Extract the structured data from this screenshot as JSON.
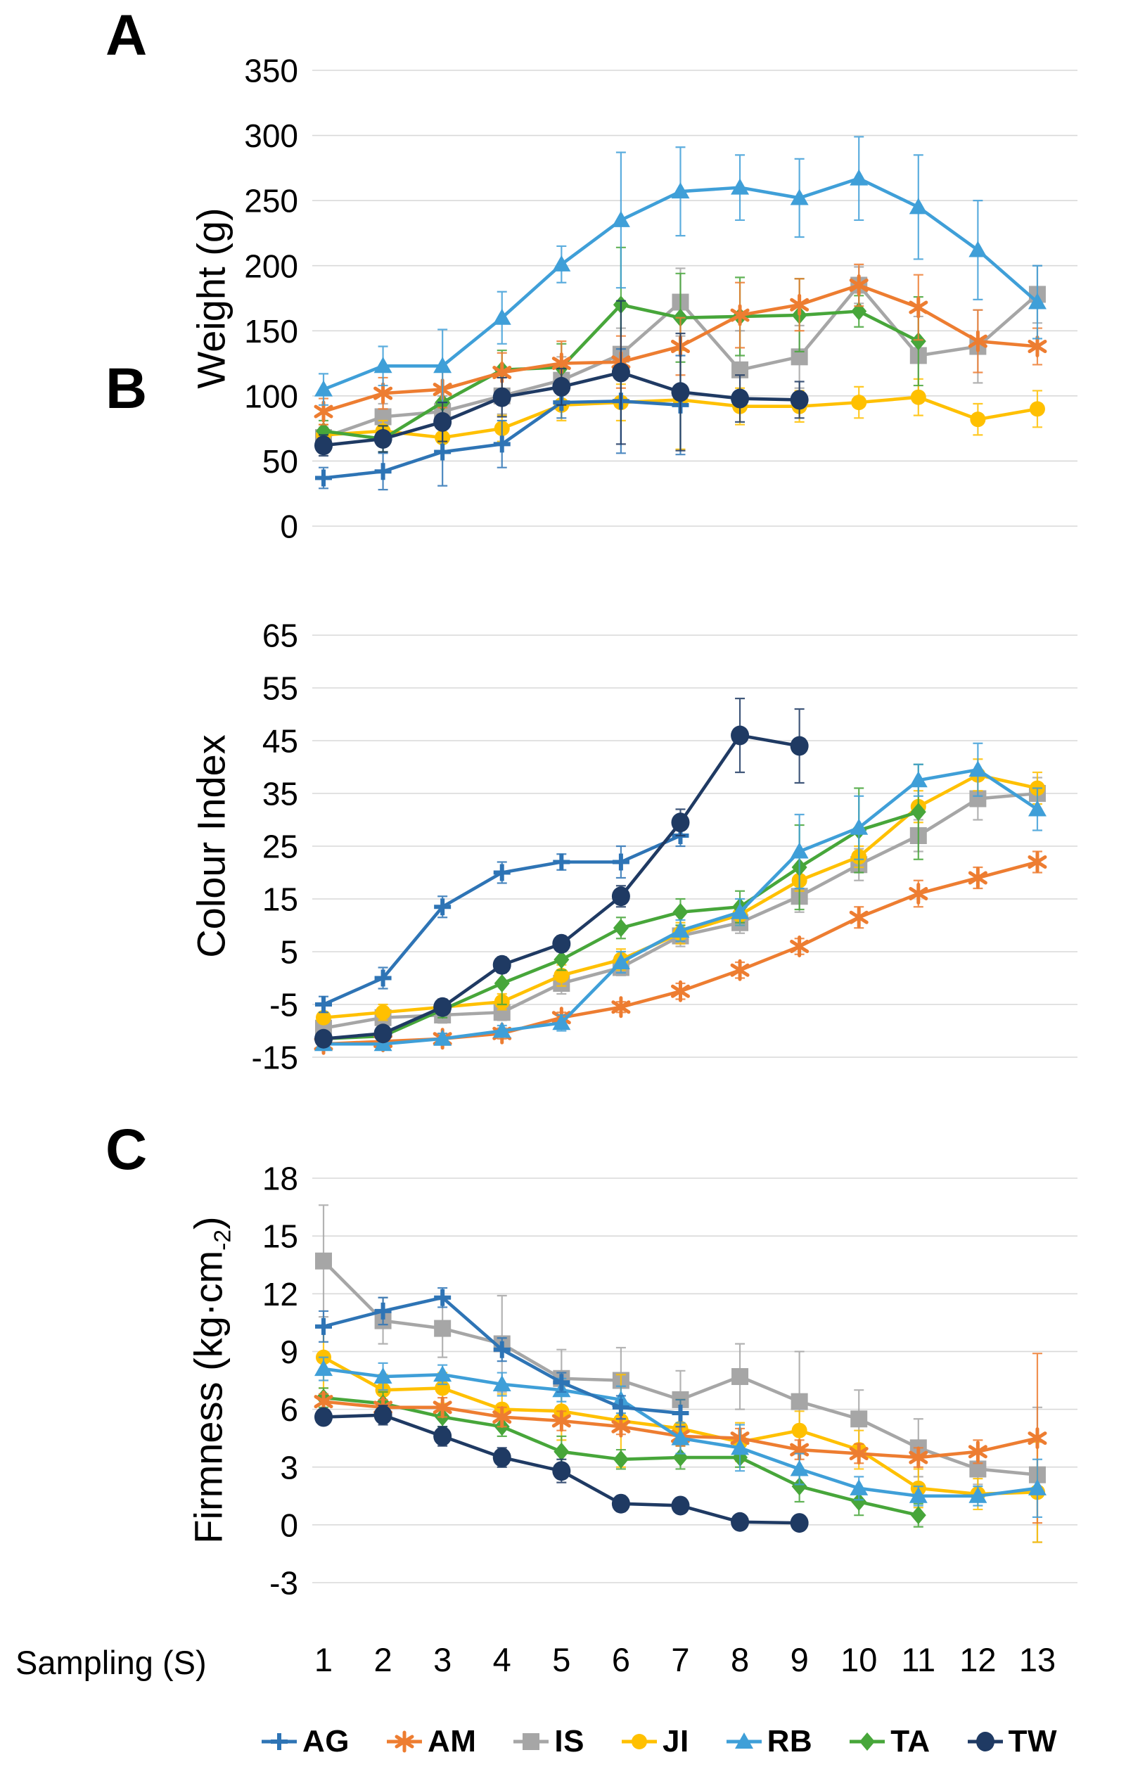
{
  "x_axis": {
    "label": "Sampling (S)",
    "ticks": [
      "1",
      "2",
      "3",
      "4",
      "5",
      "6",
      "7",
      "8",
      "9",
      "10",
      "11",
      "12",
      "13"
    ]
  },
  "panels": [
    {
      "letter": "A",
      "ylabel": "Weight (g)"
    },
    {
      "letter": "B",
      "ylabel": "Colour Index"
    },
    {
      "letter": "C",
      "ylabel_pre": "Firmness (kg·cm",
      "ylabel_sub": "-2",
      "ylabel_post": ")"
    }
  ],
  "series_defs": {
    "order": [
      "AG",
      "AM",
      "IS",
      "JI",
      "RB",
      "TA",
      "TW"
    ],
    "draw_order": [
      "IS",
      "JI",
      "TA",
      "AM",
      "RB",
      "AG",
      "TW"
    ],
    "AG": {
      "label": "AG",
      "color": "#2e74b5",
      "marker": "plus"
    },
    "AM": {
      "label": "AM",
      "color": "#ed7d31",
      "marker": "asterisk"
    },
    "IS": {
      "label": "IS",
      "color": "#a6a6a6",
      "marker": "square"
    },
    "JI": {
      "label": "JI",
      "color": "#ffc000",
      "marker": "circle"
    },
    "RB": {
      "label": "RB",
      "color": "#3f9fd8",
      "marker": "triangle"
    },
    "TA": {
      "label": "TA",
      "color": "#47a63a",
      "marker": "diamond"
    },
    "TW": {
      "label": "TW",
      "color": "#1f3a63",
      "marker": "dot"
    }
  },
  "style": {
    "gridline_color": "#d9d9d9",
    "tick_font_size": 46,
    "x_tick_font_size": 47
  },
  "chart_data": [
    {
      "type": "line",
      "panel": "A",
      "ylabel": "Weight (g)",
      "ylim": [
        0,
        350
      ],
      "yticks": [
        350,
        300,
        250,
        200,
        150,
        100,
        50,
        0
      ],
      "x": [
        1,
        2,
        3,
        4,
        5,
        6,
        7,
        8,
        9,
        10,
        11,
        12,
        13
      ],
      "series": [
        {
          "name": "AG",
          "values": [
            37,
            42,
            57,
            63,
            95,
            96,
            93
          ],
          "err": [
            8,
            14,
            26,
            18,
            12,
            40,
            38
          ]
        },
        {
          "name": "AM",
          "values": [
            88,
            102,
            105,
            118,
            125,
            126,
            138,
            162,
            170,
            185,
            168,
            142,
            138
          ],
          "err": [
            10,
            12,
            14,
            15,
            17,
            20,
            22,
            25,
            20,
            16,
            25,
            24,
            14
          ]
        },
        {
          "name": "IS",
          "values": [
            68,
            84,
            88,
            100,
            112,
            132,
            172,
            120,
            130,
            185,
            131,
            138,
            178
          ],
          "err": [
            8,
            10,
            12,
            14,
            18,
            20,
            26,
            30,
            24,
            14,
            30,
            28,
            22
          ]
        },
        {
          "name": "JI",
          "values": [
            70,
            73,
            68,
            75,
            93,
            95,
            97,
            92,
            92,
            95,
            99,
            82,
            90
          ],
          "err": [
            8,
            8,
            10,
            10,
            12,
            14,
            38,
            14,
            12,
            12,
            14,
            12,
            14
          ]
        },
        {
          "name": "RB",
          "values": [
            105,
            123,
            123,
            160,
            201,
            235,
            257,
            260,
            252,
            267,
            245,
            212,
            172
          ],
          "err": [
            12,
            15,
            28,
            20,
            14,
            52,
            34,
            25,
            30,
            32,
            40,
            38,
            28
          ]
        },
        {
          "name": "TA",
          "values": [
            73,
            67,
            95,
            120,
            122,
            170,
            160,
            161,
            162,
            165,
            142
          ],
          "err": [
            8,
            10,
            12,
            15,
            18,
            44,
            34,
            30,
            28,
            12,
            34
          ]
        },
        {
          "name": "TW",
          "values": [
            62,
            67,
            80,
            99,
            107,
            118,
            103,
            98,
            97
          ],
          "err": [
            8,
            10,
            15,
            15,
            14,
            55,
            45,
            18,
            14
          ]
        }
      ]
    },
    {
      "type": "line",
      "panel": "B",
      "ylabel": "Colour Index",
      "ylim": [
        -15,
        65
      ],
      "yticks": [
        65,
        55,
        45,
        35,
        25,
        15,
        5,
        -5,
        -15
      ],
      "x": [
        1,
        2,
        3,
        4,
        5,
        6,
        7,
        8,
        9,
        10,
        11,
        12,
        13
      ],
      "series": [
        {
          "name": "AG",
          "values": [
            -5,
            0,
            13.5,
            20,
            22,
            22,
            27
          ],
          "err": [
            1.5,
            2,
            2,
            2,
            1.5,
            3,
            2
          ]
        },
        {
          "name": "AM",
          "values": [
            -12.5,
            -12,
            -11.5,
            -10.5,
            -7.5,
            -5.5,
            -2.5,
            1.5,
            6,
            11.5,
            16,
            19,
            22
          ],
          "err": [
            0.5,
            0.5,
            1,
            1,
            1,
            1,
            1.5,
            1.5,
            1.5,
            2,
            2.5,
            2,
            2
          ]
        },
        {
          "name": "IS",
          "values": [
            -9.5,
            -7.5,
            -7,
            -6.5,
            -1,
            2,
            8,
            10.5,
            15.5,
            21.5,
            27,
            34,
            35
          ],
          "err": [
            1,
            1.5,
            1.5,
            1.5,
            2,
            1.5,
            2,
            2,
            3,
            3,
            3,
            4,
            3
          ]
        },
        {
          "name": "JI",
          "values": [
            -7.5,
            -6.5,
            -5.5,
            -4.5,
            0.5,
            3.5,
            8.5,
            12,
            18.5,
            23,
            32.5,
            38.5,
            36
          ],
          "err": [
            1,
            1.5,
            1,
            1.5,
            2,
            2,
            2,
            2,
            2,
            2,
            3,
            3,
            3
          ]
        },
        {
          "name": "RB",
          "values": [
            -12.5,
            -12.5,
            -11.5,
            -10,
            -8.5,
            3,
            9,
            12.5,
            24,
            28.5,
            37.5,
            39.5,
            32
          ],
          "err": [
            0.5,
            0.5,
            1,
            1,
            1.5,
            2,
            2,
            2.5,
            7,
            6,
            3,
            5,
            4
          ]
        },
        {
          "name": "TA",
          "values": [
            -11.5,
            -11,
            -6,
            -1,
            3.5,
            9.5,
            12.5,
            13.5,
            21,
            28,
            31.5
          ],
          "err": [
            0.5,
            1,
            1.5,
            4,
            2,
            2,
            2.5,
            3,
            8,
            8,
            9
          ]
        },
        {
          "name": "TW",
          "values": [
            -11.5,
            -10.5,
            -5.5,
            2.5,
            6.5,
            15.5,
            29.5,
            46,
            44
          ],
          "err": [
            0.5,
            1,
            1.5,
            1.5,
            1.5,
            2,
            2.5,
            7,
            7
          ]
        }
      ]
    },
    {
      "type": "line",
      "panel": "C",
      "ylabel": "Firmness (kg·cm-2)",
      "ylim": [
        -3,
        18
      ],
      "yticks": [
        18,
        15,
        12,
        9,
        6,
        3,
        0,
        -3
      ],
      "x": [
        1,
        2,
        3,
        4,
        5,
        6,
        7,
        8,
        9,
        10,
        11,
        12,
        13
      ],
      "series": [
        {
          "name": "AG",
          "values": [
            10.3,
            11.1,
            11.8,
            9.1,
            7.4,
            6.1,
            5.8
          ],
          "err": [
            0.8,
            0.7,
            0.5,
            0.6,
            0.5,
            0.6,
            0.7
          ]
        },
        {
          "name": "AM",
          "values": [
            6.4,
            6.1,
            6.1,
            5.6,
            5.4,
            5.1,
            4.6,
            4.5,
            3.9,
            3.7,
            3.5,
            3.8,
            4.5
          ],
          "err": [
            0.4,
            0.4,
            0.5,
            0.5,
            0.5,
            0.4,
            0.5,
            0.5,
            0.5,
            0.5,
            0.5,
            0.6,
            4.4
          ]
        },
        {
          "name": "IS",
          "values": [
            13.7,
            10.6,
            10.2,
            9.4,
            7.6,
            7.5,
            6.5,
            7.7,
            6.4,
            5.5,
            4.0,
            2.9,
            2.6
          ],
          "err": [
            2.9,
            1.2,
            1.5,
            2.5,
            1.5,
            1.7,
            1.5,
            1.7,
            2.6,
            1.5,
            1.5,
            0.8,
            3.5
          ]
        },
        {
          "name": "JI",
          "values": [
            8.7,
            7.0,
            7.1,
            6.0,
            5.9,
            5.4,
            5.0,
            4.3,
            4.9,
            3.9,
            1.9,
            1.6,
            1.7
          ],
          "err": [
            1.6,
            0.8,
            0.8,
            0.8,
            1.5,
            2.4,
            1.5,
            1.0,
            1.0,
            1.0,
            1.0,
            0.8,
            2.6
          ]
        },
        {
          "name": "RB",
          "values": [
            8.1,
            7.7,
            7.8,
            7.3,
            7.0,
            6.5,
            4.5,
            4.0,
            2.9,
            1.9,
            1.5,
            1.5,
            1.9
          ],
          "err": [
            0.6,
            0.7,
            0.5,
            0.6,
            0.6,
            0.7,
            0.8,
            1.2,
            0.8,
            0.6,
            0.5,
            0.5,
            1.5
          ]
        },
        {
          "name": "TA",
          "values": [
            6.6,
            6.3,
            5.6,
            5.1,
            3.8,
            3.4,
            3.5,
            3.5,
            2.0,
            1.2,
            0.5
          ],
          "err": [
            0.5,
            0.6,
            0.5,
            0.5,
            0.8,
            0.5,
            0.6,
            0.5,
            0.8,
            0.7,
            0.6
          ]
        },
        {
          "name": "TW",
          "values": [
            5.6,
            5.7,
            4.6,
            3.5,
            2.8,
            1.1,
            1.0,
            0.15,
            0.1
          ],
          "err": [
            0.4,
            0.5,
            0.5,
            0.5,
            0.6,
            0.4,
            0.4,
            0.3,
            0.2
          ]
        }
      ]
    }
  ],
  "legend": {
    "items": [
      "AG",
      "AM",
      "IS",
      "JI",
      "RB",
      "TA",
      "TW"
    ]
  }
}
